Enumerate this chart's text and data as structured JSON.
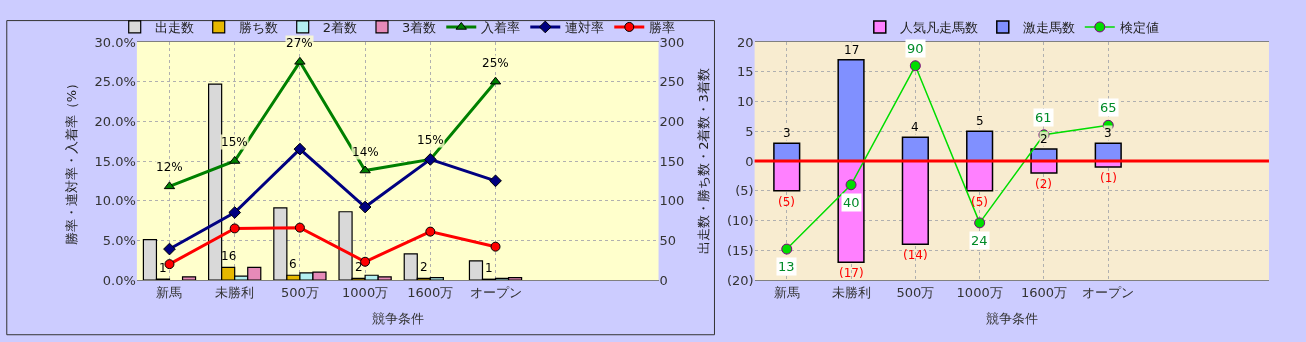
{
  "chart_data": [
    {
      "type": "bar",
      "xlabel": "競争条件",
      "ylabel": "勝率・連対率・入着率（%）",
      "y2label": "出走数・勝ち数・2着数・3着数",
      "categories": [
        "新馬",
        "未勝利",
        "500万",
        "1000万",
        "1600万",
        "オープン",
        null,
        null
      ],
      "ylim": [
        0,
        30
      ],
      "yticks": [
        {
          "value": 0,
          "label": "0.0%"
        },
        {
          "value": 5,
          "label": "5.0%"
        },
        {
          "value": 10,
          "label": "10.0%"
        },
        {
          "value": 15,
          "label": "15.0%"
        },
        {
          "value": 20,
          "label": "20.0%"
        },
        {
          "value": 25,
          "label": "25.0%"
        },
        {
          "value": 30,
          "label": "30.0%"
        }
      ],
      "y2lim": [
        0,
        300
      ],
      "y2ticks": [
        0,
        50,
        100,
        150,
        200,
        250,
        300
      ],
      "grid": true,
      "legend": "top",
      "series": [
        {
          "name": "出走数",
          "axis": "y2",
          "color": "#d9d9d9",
          "values": [
            51,
            247,
            91,
            86,
            33,
            24,
            null,
            null
          ]
        },
        {
          "name": "勝ち数",
          "axis": "y2",
          "color": "#e6b800",
          "values": [
            1,
            16,
            6,
            2,
            2,
            1,
            null,
            null
          ],
          "value_labels": [
            "1",
            "16",
            "6",
            "2",
            "2",
            "1",
            null,
            null
          ]
        },
        {
          "name": "2着数",
          "axis": "y2",
          "color": "#b3f0f0",
          "values": [
            null,
            5,
            9,
            6,
            3,
            2,
            null,
            null
          ]
        },
        {
          "name": "3着数",
          "axis": "y2",
          "color": "#e68ab8",
          "values": [
            4,
            16,
            10,
            4,
            null,
            3,
            null,
            null
          ]
        },
        {
          "name": "入着率",
          "type": "line",
          "color": "#008000",
          "marker": "triangle",
          "values": [
            11.8,
            15.0,
            27.5,
            13.8,
            15.2,
            25.0,
            null,
            null
          ],
          "value_labels": [
            "12%",
            "15%",
            "27%",
            "14%",
            "15%",
            "25%",
            null,
            null
          ]
        },
        {
          "name": "連対率",
          "type": "line",
          "color": "#000080",
          "marker": "diamond",
          "values": [
            3.9,
            8.5,
            16.5,
            9.2,
            15.2,
            12.5,
            null,
            null
          ]
        },
        {
          "name": "勝率",
          "type": "line",
          "color": "#ff0000",
          "marker": "circle",
          "values": [
            2.0,
            6.5,
            6.6,
            2.3,
            6.1,
            4.2,
            null,
            null
          ]
        }
      ]
    },
    {
      "type": "bar",
      "stacked": true,
      "xlabel": "競争条件",
      "categories": [
        "新馬",
        "未勝利",
        "500万",
        "1000万",
        "1600万",
        "オープン",
        null,
        null
      ],
      "ylim": [
        -20,
        20
      ],
      "yticks": [
        {
          "value": -20,
          "label": "(20)"
        },
        {
          "value": -15,
          "label": "(15)"
        },
        {
          "value": -10,
          "label": "(10)"
        },
        {
          "value": -5,
          "label": "(5)"
        },
        0,
        5,
        10,
        15,
        20
      ],
      "y2lim": [
        0,
        100
      ],
      "grid": true,
      "legend": "top",
      "ref_lines": [
        {
          "axis": "y",
          "value": 0,
          "color": "#ff0000"
        }
      ],
      "series": [
        {
          "name": "人気凡走馬数",
          "color": "#ff80ff",
          "values": [
            -5,
            -17,
            -14,
            -5,
            -2,
            -1,
            null,
            null
          ],
          "value_labels": [
            "(5)",
            "(17)",
            "(14)",
            "(5)",
            "(2)",
            "(1)",
            null,
            null
          ]
        },
        {
          "name": "激走馬数",
          "color": "#8090ff",
          "values": [
            3,
            17,
            4,
            5,
            2,
            3,
            null,
            null
          ],
          "value_labels": [
            "3",
            "17",
            "4",
            "5",
            "2",
            "3",
            null,
            null
          ]
        },
        {
          "name": "検定値",
          "type": "line",
          "axis": "y2",
          "color": "#00dd00",
          "marker": "circle",
          "values": [
            13,
            40,
            90,
            24,
            61,
            65,
            null,
            null
          ],
          "value_labels": [
            "13",
            "40",
            "90",
            "24",
            "61",
            "65",
            null,
            null
          ]
        }
      ]
    }
  ]
}
